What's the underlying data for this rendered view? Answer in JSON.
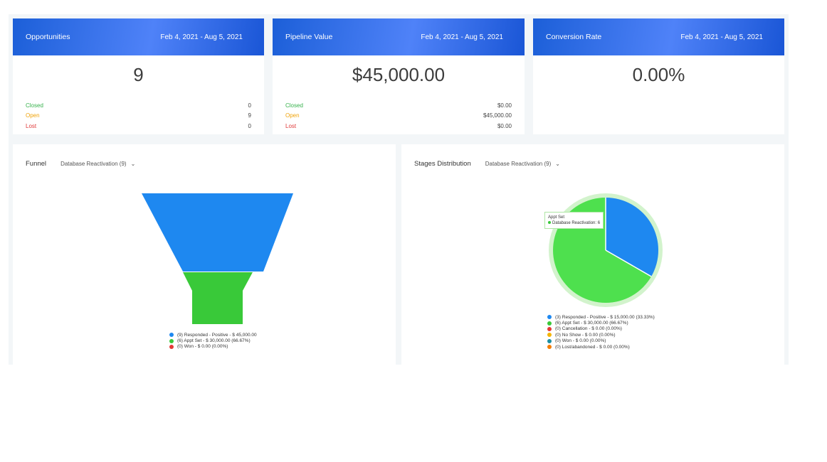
{
  "cards": [
    {
      "title": "Opportunities",
      "date_range": "Feb 4, 2021 - Aug 5, 2021",
      "value": "9",
      "stats": [
        {
          "label": "Closed",
          "value": "0"
        },
        {
          "label": "Open",
          "value": "9"
        },
        {
          "label": "Lost",
          "value": "0"
        }
      ]
    },
    {
      "title": "Pipeline Value",
      "date_range": "Feb 4, 2021 - Aug 5, 2021",
      "value": "$45,000.00",
      "stats": [
        {
          "label": "Closed",
          "value": "$0.00"
        },
        {
          "label": "Open",
          "value": "$45,000.00"
        },
        {
          "label": "Lost",
          "value": "$0.00"
        }
      ]
    },
    {
      "title": "Conversion Rate",
      "date_range": "Feb 4, 2021 - Aug 5, 2021",
      "value": "0.00%"
    }
  ],
  "funnel": {
    "title": "Funnel",
    "pipeline": "Database Reactivation (9)",
    "legend": [
      {
        "label": "(9) Responded - Positive - $ 45,000.00",
        "color": "#1e88f0"
      },
      {
        "label": "(6) Appt Set - $ 30,000.00 (66.67%)",
        "color": "#39c939"
      },
      {
        "label": "(0) Won - $ 0.00 (0.00%)",
        "color": "#e53935"
      }
    ]
  },
  "stages": {
    "title": "Stages Distribution",
    "pipeline": "Database Reactivation (9)",
    "tooltip": {
      "title": "Appt Set",
      "series": "Database Reactivation: 6"
    },
    "legend": [
      {
        "label": "(3) Responded - Positive - $ 15,000.00 (33.33%)",
        "color": "#1e88f0"
      },
      {
        "label": "(6) Appt Set - $ 30,000.00 (66.67%)",
        "color": "#39c939"
      },
      {
        "label": "(0) Cancellation - $ 0.00 (0.00%)",
        "color": "#e53935"
      },
      {
        "label": "(0) No Show - $ 0.00 (0.00%)",
        "color": "#f4b400"
      },
      {
        "label": "(0) Won - $ 0.00 (0.00%)",
        "color": "#1b8fa3"
      },
      {
        "label": "(0) Lost/abandoned - $ 0.00 (0.00%)",
        "color": "#f57c00"
      }
    ]
  },
  "colors": {
    "closed": "#37b24d",
    "open": "#f0a30a",
    "lost": "#e03b3b",
    "header_blue": "#1c5fd8"
  },
  "chart_data": [
    {
      "type": "funnel",
      "categories": [
        "Responded - Positive",
        "Appt Set",
        "Won"
      ],
      "values": [
        9,
        6,
        0
      ]
    },
    {
      "type": "pie",
      "categories": [
        "Responded - Positive",
        "Appt Set",
        "Cancellation",
        "No Show",
        "Won",
        "Lost/abandoned"
      ],
      "values": [
        3,
        6,
        0,
        0,
        0,
        0
      ]
    }
  ]
}
